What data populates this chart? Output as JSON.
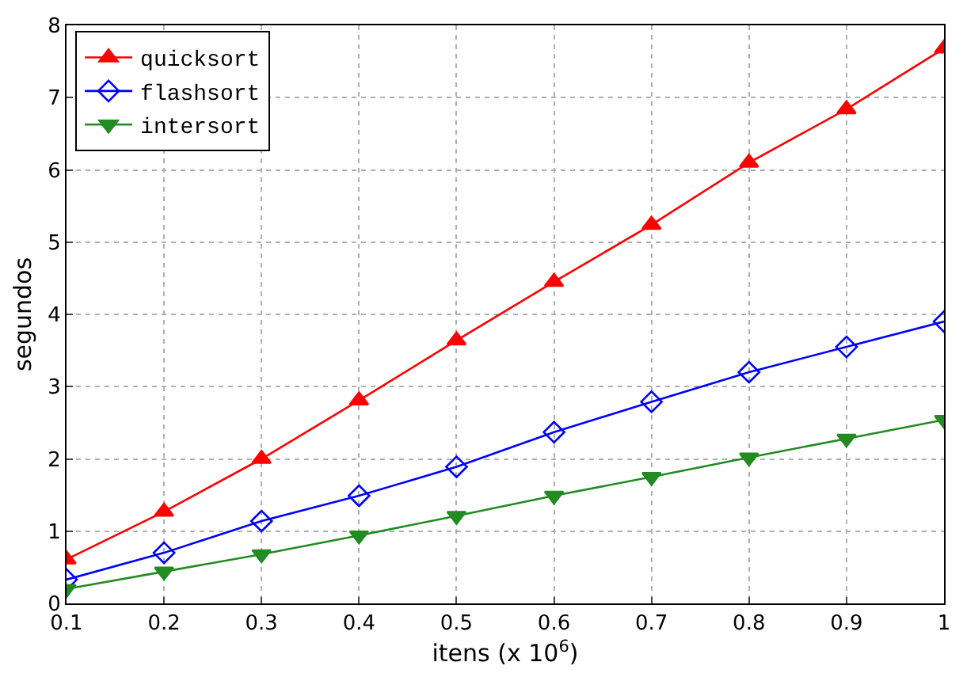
{
  "chart_data": {
    "type": "line",
    "xlabel": "itens (x 10$^{6}$)",
    "ylabel": "segundos",
    "x": [
      0.1,
      0.2,
      0.3,
      0.4,
      0.5,
      0.6,
      0.7,
      0.8,
      0.9,
      1
    ],
    "series": [
      {
        "name": "quicksort",
        "color": "#ff0000",
        "marker": "triangle",
        "values": [
          0.61,
          1.27,
          2.0,
          2.81,
          3.64,
          4.45,
          5.24,
          6.1,
          6.84,
          7.68
        ]
      },
      {
        "name": "flashsort",
        "color": "#0000ff",
        "marker": "diamond",
        "values": [
          0.33,
          0.7,
          1.14,
          1.49,
          1.89,
          2.37,
          2.79,
          3.2,
          3.55,
          3.9
        ]
      },
      {
        "name": "intersort",
        "color": "#228b22",
        "marker": "triangle-down",
        "values": [
          0.2,
          0.44,
          0.68,
          0.94,
          1.21,
          1.49,
          1.75,
          2.02,
          2.28,
          2.54
        ]
      }
    ],
    "xlim": [
      0.1,
      1
    ],
    "xticks": [
      0.1,
      0.2,
      0.3,
      0.4,
      0.5,
      0.6,
      0.7,
      0.8,
      0.9,
      1
    ],
    "ylim": [
      0,
      8
    ],
    "yticks": [
      0,
      1,
      2,
      3,
      4,
      5,
      6,
      7,
      8
    ],
    "grid": true,
    "legend": "top left",
    "line_style": "solid"
  }
}
